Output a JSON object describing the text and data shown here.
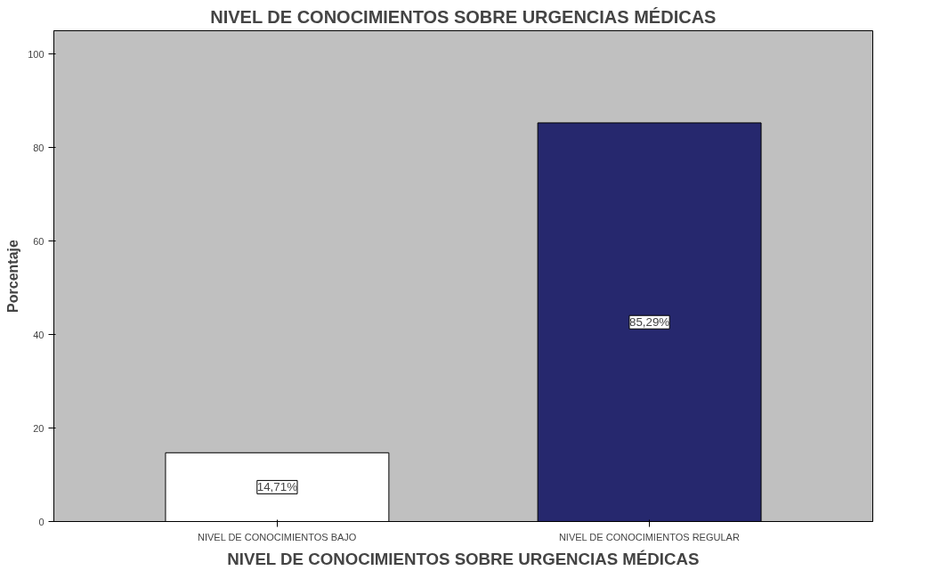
{
  "chart_data": {
    "type": "bar",
    "title": "NIVEL DE CONOCIMIENTOS SOBRE URGENCIAS MÉDICAS",
    "categories": [
      "NIVEL DE CONOCIMIENTOS BAJO",
      "NIVEL DE CONOCIMIENTOS REGULAR"
    ],
    "values": [
      14.71,
      85.29
    ],
    "colors": [
      "#ffffff",
      "#26286e"
    ],
    "value_labels": [
      "14,71%",
      "85,29%"
    ],
    "xlabel": "NIVEL DE CONOCIMIENTOS SOBRE URGENCIAS MÉDICAS",
    "ylabel": "Porcentaje",
    "ylim": [
      0,
      105
    ],
    "yticks": [
      0,
      20,
      40,
      60,
      80,
      100
    ],
    "grid": false
  }
}
